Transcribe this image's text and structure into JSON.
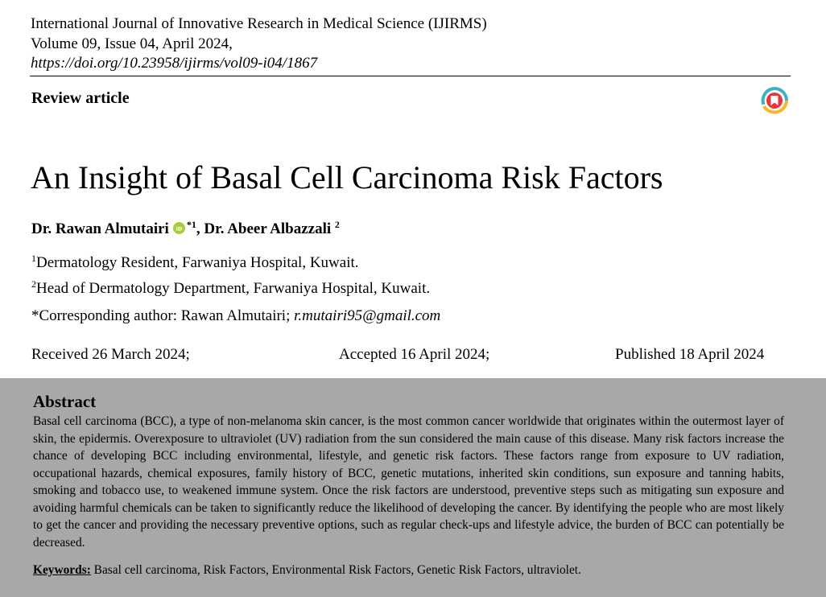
{
  "journal": {
    "name": "International Journal of Innovative Research in Medical Science (IJIRMS)",
    "issue": "Volume 09, Issue 04, April 2024,",
    "doi": "https://doi.org/10.23958/ijirms/vol09-i04/1867"
  },
  "article_type": "Review article",
  "title": "An Insight of Basal Cell Carcinoma Risk Factors",
  "authors": [
    {
      "name": "Dr. Rawan Almutairi",
      "sup": "*1",
      "separator": ", "
    },
    {
      "name": "Dr. Abeer Albazzali",
      "sup": "2"
    }
  ],
  "affiliations": [
    {
      "sup": "1",
      "text": "Dermatology Resident, Farwaniya Hospital, Kuwait."
    },
    {
      "sup": "2",
      "text": "Head of Dermatology Department, Farwaniya Hospital, Kuwait."
    }
  ],
  "corresponding": {
    "label": "*Corresponding author: Rawan Almutairi; ",
    "email": "r.mutairi95@gmail.com"
  },
  "dates": {
    "received": "Received 26 March 2024;",
    "accepted": "Accepted 16 April 2024;",
    "published": "Published 18 April 2024"
  },
  "abstract": {
    "heading": "Abstract",
    "text": "Basal cell carcinoma (BCC), a type of non-melanoma skin cancer, is the most common cancer worldwide that originates within the outermost layer of skin, the epidermis. Overexposure to ultraviolet (UV) radiation from the sun considered the main cause of this disease. Many risk factors increase the chance of developing BCC including environmental, lifestyle, and genetic risk factors. These factors range from exposure to UV radiation, occupational hazards, chemical exposures, family history of BCC, genetic mutations, inherited skin conditions, sun exposure and tanning habits, smoking and tobacco use, to weakened immune system. Once the risk factors are understood, preventive steps such as mitigating sun exposure and avoiding harmful chemicals can be taken to significantly reduce the likelihood of developing the cancer. By identifying the people who are most likely to get the cancer and providing the necessary preventive options, such as regular check-ups and lifestyle advice, the burden of BCC can potentially be decreased."
  },
  "keywords": {
    "label": "Keywords:",
    "text": " Basal cell carcinoma, Risk Factors, Environmental Risk Factors, Genetic Risk Factors, ultraviolet."
  },
  "icons": {
    "crossmark": "crossmark-icon",
    "orcid": "orcid-icon"
  },
  "colors": {
    "abstract_background": "#a8a8a8",
    "orcid_green": "#a6ce39",
    "crossmark_red": "#e8353c",
    "crossmark_yellow": "#f7b824",
    "crossmark_blue": "#3eb1c8"
  }
}
